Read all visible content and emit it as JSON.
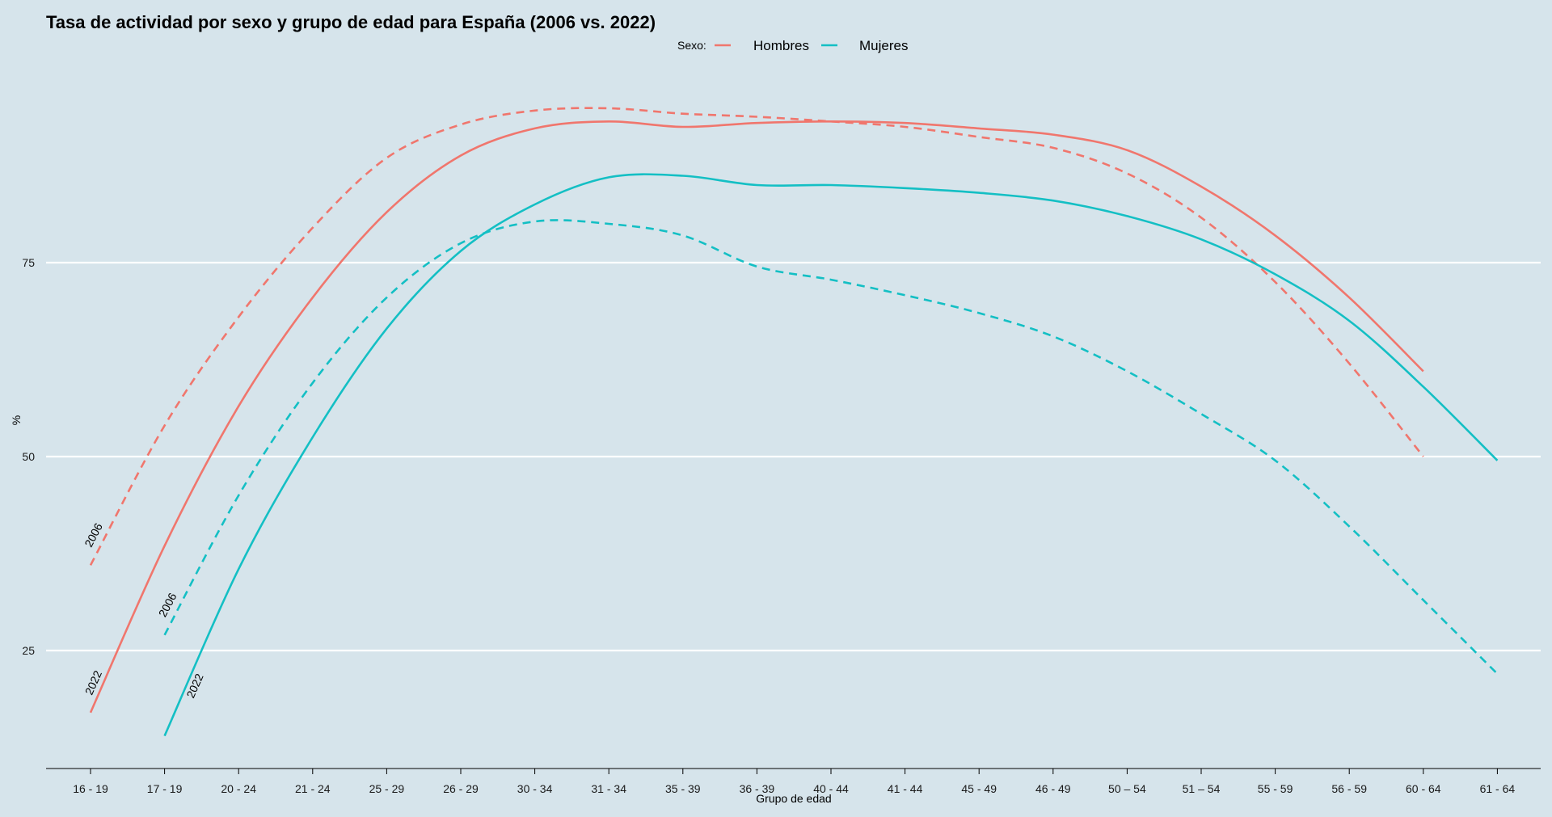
{
  "chart_data": {
    "type": "line",
    "title": "Tasa de actividad por sexo y grupo de edad para España (2006 vs. 2022)",
    "xlabel": "Grupo de edad",
    "ylabel": "%",
    "categories": [
      "16 - 19",
      "17 - 19",
      "20 - 24",
      "21 - 24",
      "25 - 29",
      "26 - 29",
      "30 - 34",
      "31 - 34",
      "35 - 39",
      "36 - 39",
      "40 - 44",
      "41 - 44",
      "45 - 49",
      "46 - 49",
      "50 – 54",
      "51 – 54",
      "55 - 59",
      "56 - 59",
      "60 - 64",
      "61 - 64"
    ],
    "yticks": [
      25,
      50,
      75
    ],
    "ylim": [
      10,
      97
    ],
    "grid": true,
    "legend": {
      "title": "Sexo:",
      "position": "top",
      "entries": [
        {
          "label": "Hombres",
          "color": "#f0766d"
        },
        {
          "label": "Mujeres",
          "color": "#14bfc4"
        }
      ]
    },
    "line_styles": {
      "2006": "dashed",
      "2022": "solid"
    },
    "series": [
      {
        "sexo": "Hombres",
        "year": "2006",
        "color": "#f0766d",
        "x": [
          0,
          1,
          2,
          3,
          4,
          5,
          6,
          7,
          8,
          9,
          10,
          11,
          12,
          13,
          14,
          15,
          16,
          17,
          18
        ],
        "values": [
          36,
          54,
          68,
          79.5,
          88.5,
          92.8,
          94.6,
          94.9,
          94.2,
          93.8,
          93.2,
          92.5,
          91.2,
          89.8,
          86.5,
          80.8,
          72.5,
          62,
          50
        ]
      },
      {
        "sexo": "Hombres",
        "year": "2022",
        "color": "#f0766d",
        "x": [
          0,
          1,
          2,
          3,
          4,
          5,
          6,
          7,
          8,
          9,
          10,
          11,
          12,
          13,
          14,
          15,
          16,
          17,
          18
        ],
        "values": [
          17,
          38.5,
          56.5,
          70.5,
          81.5,
          88.8,
          92.3,
          93.2,
          92.5,
          93,
          93.2,
          93,
          92.3,
          91.5,
          89.5,
          84.8,
          78.5,
          70.5,
          61
        ]
      },
      {
        "sexo": "Mujeres",
        "year": "2006",
        "color": "#14bfc4",
        "x": [
          1,
          2,
          3,
          4,
          5,
          6,
          7,
          8,
          9,
          10,
          11,
          12,
          13,
          14,
          15,
          16,
          17,
          18,
          19
        ],
        "values": [
          27,
          45,
          59.5,
          70.5,
          77.5,
          80.3,
          80,
          78.5,
          74.5,
          72.8,
          70.8,
          68.5,
          65.5,
          61,
          55.5,
          49.5,
          41,
          31.5,
          22
        ]
      },
      {
        "sexo": "Mujeres",
        "year": "2022",
        "color": "#14bfc4",
        "x": [
          1,
          2,
          3,
          4,
          5,
          6,
          7,
          8,
          9,
          10,
          11,
          12,
          13,
          14,
          15,
          16,
          17,
          18,
          19
        ],
        "values": [
          14,
          35.5,
          52.5,
          66.5,
          76.5,
          82.5,
          86,
          86.2,
          85,
          85,
          84.6,
          84,
          83,
          81,
          78,
          73.5,
          67.5,
          59,
          49.5
        ]
      }
    ]
  }
}
